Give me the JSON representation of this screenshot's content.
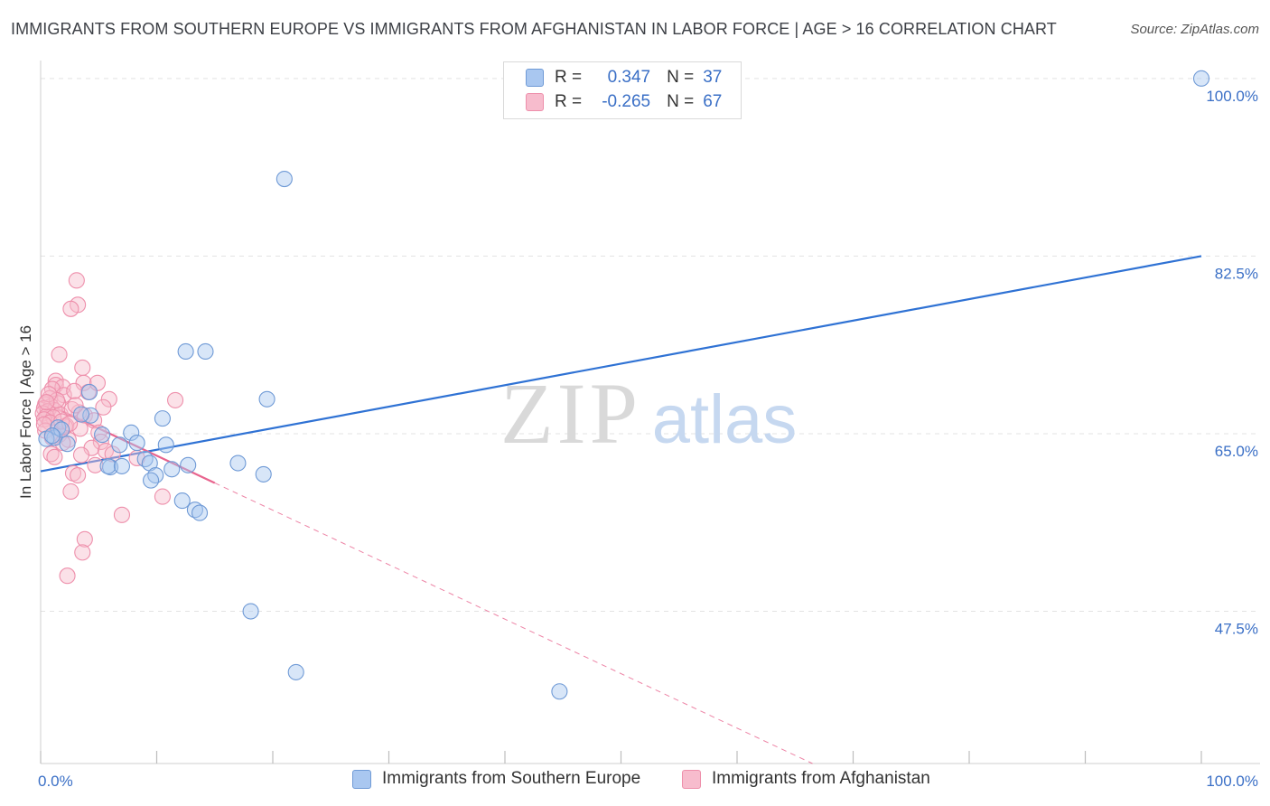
{
  "title": "IMMIGRANTS FROM SOUTHERN EUROPE VS IMMIGRANTS FROM AFGHANISTAN IN LABOR FORCE | AGE > 16 CORRELATION CHART",
  "source": "Source: ZipAtlas.com",
  "watermark": {
    "zip": "ZIP",
    "atlas": "atlas"
  },
  "legend_stats": [
    {
      "r_label": "R =",
      "r_value": "0.347",
      "n_label": "N =",
      "n_value": "37",
      "color": "#a9c7f0",
      "stroke": "#6f9ad6"
    },
    {
      "r_label": "R =",
      "r_value": "-0.265",
      "n_label": "N =",
      "n_value": "67",
      "color": "#f7bccd",
      "stroke": "#ee8fab"
    }
  ],
  "chart_data": {
    "type": "scatter",
    "title": "IMMIGRANTS FROM SOUTHERN EUROPE VS IMMIGRANTS FROM AFGHANISTAN IN LABOR FORCE | AGE > 16 CORRELATION CHART",
    "xlabel": "",
    "ylabel": "In Labor Force | Age > 16",
    "xlim": [
      0,
      100
    ],
    "ylim": [
      32.5,
      101.5
    ],
    "x_tick_labels": [
      "0.0%",
      "100.0%"
    ],
    "y_ticks": [
      47.5,
      65.0,
      82.5,
      100.0
    ],
    "y_tick_labels": [
      "47.5%",
      "65.0%",
      "82.5%",
      "100.0%"
    ],
    "grid": true,
    "legend_position": "bottom",
    "series": [
      {
        "name": "Immigrants from Southern Europe",
        "color": "#a9c7f0",
        "stroke": "#6f9ad6",
        "trend_color": "#2f72d4",
        "trend": {
          "x0": 0,
          "y0": 61.3,
          "x1": 100,
          "y1": 82.5,
          "dash_from": null
        },
        "points": [
          [
            100.0,
            100.0
          ],
          [
            21.0,
            90.1
          ],
          [
            12.5,
            73.1
          ],
          [
            14.2,
            73.1
          ],
          [
            19.5,
            68.4
          ],
          [
            4.2,
            69.1
          ],
          [
            4.3,
            66.8
          ],
          [
            10.5,
            66.5
          ],
          [
            7.8,
            65.1
          ],
          [
            5.3,
            64.9
          ],
          [
            1.2,
            64.6
          ],
          [
            0.5,
            64.5
          ],
          [
            2.3,
            64.0
          ],
          [
            10.8,
            63.9
          ],
          [
            6.8,
            63.9
          ],
          [
            9.0,
            62.5
          ],
          [
            12.7,
            61.9
          ],
          [
            17.0,
            62.1
          ],
          [
            6.0,
            61.7
          ],
          [
            11.3,
            61.5
          ],
          [
            9.4,
            62.1
          ],
          [
            5.8,
            61.8
          ],
          [
            9.9,
            60.9
          ],
          [
            19.2,
            61.0
          ],
          [
            9.5,
            60.4
          ],
          [
            12.2,
            58.4
          ],
          [
            13.3,
            57.5
          ],
          [
            13.7,
            57.2
          ],
          [
            18.1,
            47.5
          ],
          [
            22.0,
            41.5
          ],
          [
            44.7,
            39.6
          ],
          [
            1.5,
            65.6
          ],
          [
            1.8,
            65.4
          ],
          [
            1.0,
            64.8
          ],
          [
            3.5,
            66.9
          ],
          [
            7.0,
            61.8
          ],
          [
            8.3,
            64.1
          ]
        ]
      },
      {
        "name": "Immigrants from Afghanistan",
        "color": "#f7bccd",
        "stroke": "#ee8fab",
        "trend_color": "#e8648e",
        "trend": {
          "x0": 0,
          "y0": 68.2,
          "x1": 66.5,
          "y1": 32.5,
          "dash_from": 15.0
        },
        "points": [
          [
            3.1,
            80.1
          ],
          [
            3.2,
            77.7
          ],
          [
            2.6,
            77.3
          ],
          [
            1.6,
            72.8
          ],
          [
            3.6,
            71.5
          ],
          [
            1.3,
            70.2
          ],
          [
            3.7,
            70.0
          ],
          [
            1.3,
            69.8
          ],
          [
            1.9,
            69.6
          ],
          [
            1.0,
            69.4
          ],
          [
            4.1,
            69.1
          ],
          [
            2.0,
            68.8
          ],
          [
            0.8,
            68.5
          ],
          [
            5.9,
            68.4
          ],
          [
            11.6,
            68.3
          ],
          [
            1.5,
            68.0
          ],
          [
            0.4,
            67.9
          ],
          [
            0.9,
            67.7
          ],
          [
            5.4,
            67.6
          ],
          [
            0.3,
            67.5
          ],
          [
            1.2,
            67.3
          ],
          [
            0.6,
            67.2
          ],
          [
            3.3,
            67.1
          ],
          [
            0.2,
            67.0
          ],
          [
            1.7,
            66.9
          ],
          [
            3.8,
            66.8
          ],
          [
            0.5,
            66.7
          ],
          [
            1.1,
            66.6
          ],
          [
            0.3,
            66.4
          ],
          [
            4.6,
            66.3
          ],
          [
            0.8,
            66.1
          ],
          [
            2.2,
            65.8
          ],
          [
            3.4,
            65.5
          ],
          [
            0.4,
            65.3
          ],
          [
            5.0,
            65.1
          ],
          [
            1.6,
            64.9
          ],
          [
            1.0,
            64.6
          ],
          [
            2.4,
            64.4
          ],
          [
            5.2,
            64.2
          ],
          [
            4.4,
            63.6
          ],
          [
            5.6,
            63.3
          ],
          [
            0.9,
            63.0
          ],
          [
            3.5,
            62.9
          ],
          [
            8.3,
            62.6
          ],
          [
            4.7,
            61.9
          ],
          [
            2.8,
            61.1
          ],
          [
            3.2,
            60.9
          ],
          [
            10.5,
            58.8
          ],
          [
            2.6,
            59.3
          ],
          [
            7.0,
            57.0
          ],
          [
            3.8,
            54.6
          ],
          [
            3.6,
            53.3
          ],
          [
            2.3,
            51.0
          ],
          [
            2.1,
            65.7
          ],
          [
            1.4,
            68.3
          ],
          [
            2.7,
            67.4
          ],
          [
            0.7,
            68.9
          ],
          [
            1.8,
            66.2
          ],
          [
            0.5,
            68.1
          ],
          [
            2.9,
            69.2
          ],
          [
            4.9,
            70.0
          ],
          [
            0.3,
            65.9
          ],
          [
            6.2,
            63.0
          ],
          [
            1.2,
            62.7
          ],
          [
            2.5,
            66.0
          ],
          [
            3.0,
            67.8
          ],
          [
            1.9,
            64.1
          ]
        ]
      }
    ]
  }
}
